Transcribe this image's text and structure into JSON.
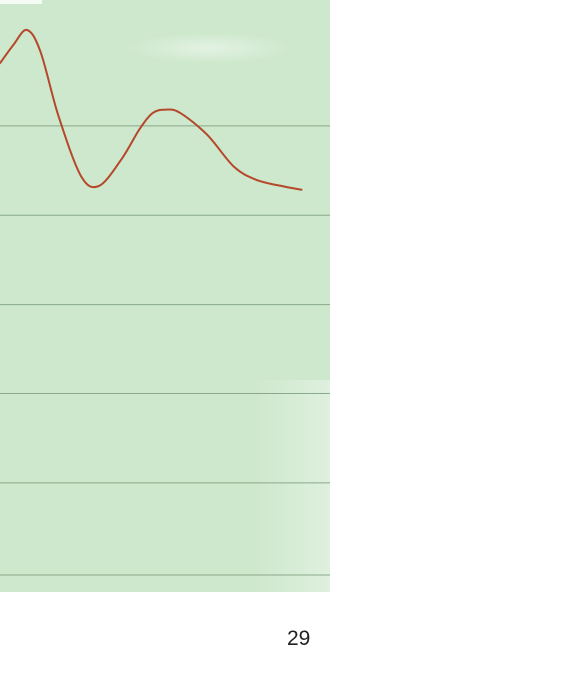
{
  "page": {
    "page_number": "29"
  },
  "colors": {
    "panel_background": "#cde8cc",
    "gridline": "#8aa98a",
    "series_line": "#b5472b",
    "text": "#222222"
  },
  "chart_data": {
    "type": "line",
    "title": "",
    "xlabel": "",
    "ylabel": "",
    "grid": true,
    "legend": "none",
    "xlim": [
      0,
      100
    ],
    "ylim": [
      0,
      100
    ],
    "gridlines_y": [
      0,
      16.9,
      33.3,
      49.6,
      66.0,
      82.4
    ],
    "series": [
      {
        "values": [
          {
            "x": 0,
            "y": 93.9
          },
          {
            "x": 3,
            "y": 97.3
          },
          {
            "x": 6,
            "y": 100.0
          },
          {
            "x": 9,
            "y": 96.0
          },
          {
            "x": 13,
            "y": 84.2
          },
          {
            "x": 18,
            "y": 73.2
          },
          {
            "x": 22,
            "y": 71.4
          },
          {
            "x": 27,
            "y": 76.3
          },
          {
            "x": 31,
            "y": 81.8
          },
          {
            "x": 34,
            "y": 84.8
          },
          {
            "x": 37,
            "y": 85.4
          },
          {
            "x": 40,
            "y": 84.8
          },
          {
            "x": 46,
            "y": 80.8
          },
          {
            "x": 52,
            "y": 74.9
          },
          {
            "x": 57,
            "y": 72.5
          },
          {
            "x": 63,
            "y": 71.3
          },
          {
            "x": 67,
            "y": 70.7
          }
        ]
      }
    ]
  }
}
